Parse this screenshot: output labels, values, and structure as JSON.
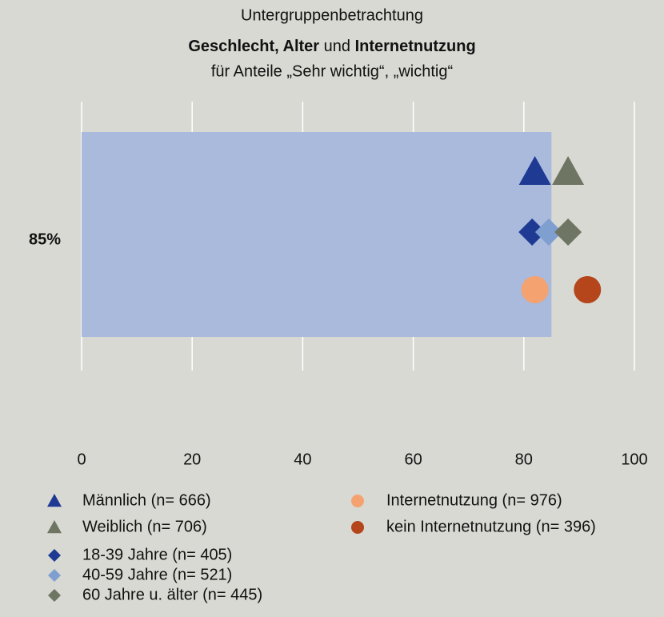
{
  "chart_data": {
    "type": "bar_with_markers",
    "title": "Untergruppenbetrachtung",
    "subtitle": [
      "Geschlecht, Alter",
      "und",
      "Internetnutzung"
    ],
    "subtitle2": "für Anteile „Sehr wichtig“, „wichtig“",
    "values": [
      85
    ],
    "value_labels": [
      "85%"
    ],
    "color": "#a9badc",
    "xlim": [
      0,
      100
    ],
    "xticks": [
      0,
      20,
      40,
      60,
      80,
      100
    ],
    "grid": true,
    "series": [
      {
        "name": "Männlich (n= 666)",
        "color": "#1f3a93",
        "marker": "triangle",
        "values": [
          82
        ]
      },
      {
        "name": "Weiblich (n= 706)",
        "color": "#6e7562",
        "marker": "triangle",
        "values": [
          88
        ]
      },
      {
        "name": "18-39 Jahre (n= 405)",
        "color": "#1f3a93",
        "marker": "diamond",
        "values": [
          81.5
        ]
      },
      {
        "name": "40-59 Jahre (n= 521)",
        "color": "#7f9fd0",
        "marker": "diamond",
        "values": [
          84.5
        ]
      },
      {
        "name": "60 Jahre u. älter (n= 445)",
        "color": "#6e7562",
        "marker": "diamond",
        "values": [
          88
        ]
      },
      {
        "name": "Internetnutzung (n= 976)",
        "color": "#f4a26f",
        "marker": "circle",
        "values": [
          82
        ]
      },
      {
        "name": "kein Internetnutzung (n= 396)",
        "color": "#b5451b",
        "marker": "circle",
        "values": [
          91.5
        ]
      }
    ]
  }
}
